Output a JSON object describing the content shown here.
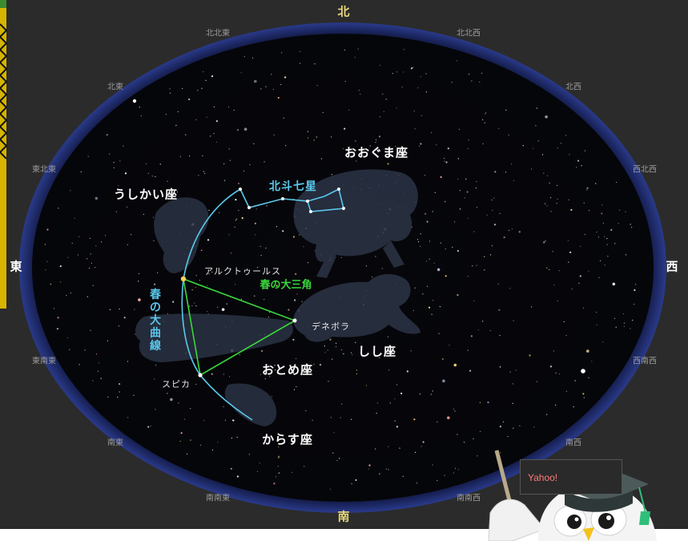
{
  "directions": {
    "n": "北",
    "nne": "北北東",
    "nnw": "北北西",
    "ne": "北東",
    "nw": "北西",
    "ene": "東北東",
    "wnw": "西北西",
    "e": "東",
    "w": "西",
    "ese": "東南東",
    "wsw": "西南西",
    "se": "南東",
    "sw": "南西",
    "sse": "南南東",
    "ssw": "南南西",
    "s": "南"
  },
  "constellations": {
    "ursa_major": "おおぐま座",
    "bootes": "うしかい座",
    "leo": "しし座",
    "virgo": "おとめ座",
    "corvus": "からす座"
  },
  "stars": {
    "arcturus": "アルクトゥールス",
    "denebola": "デネボラ",
    "spica": "スピカ"
  },
  "asterisms": {
    "big_dipper": "北斗七星",
    "spring_triangle": "春の大三角",
    "spring_curve": "春の大曲線"
  },
  "badge": {
    "text": "Yahoo!"
  },
  "colors": {
    "sky": "#050508",
    "horizon_ring": "#1f2a6e",
    "background": "#2b2b2b",
    "curve": "#5ac8ec",
    "triangle": "#39d83a",
    "direction_main": "#e8d77a"
  }
}
